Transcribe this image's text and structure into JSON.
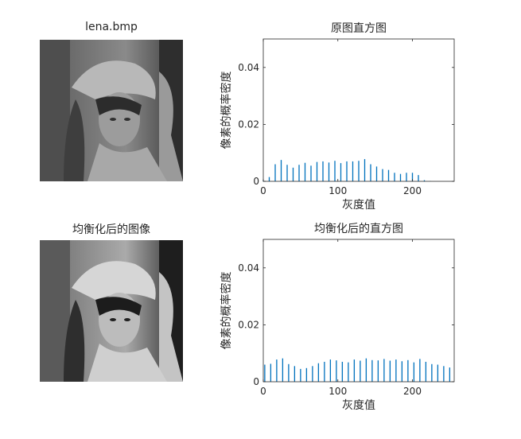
{
  "figure": {
    "colors": {
      "bar": "#0072bd",
      "axis": "#262626",
      "background": "#ffffff"
    }
  },
  "images": [
    {
      "title": "lena.bmp",
      "icon": "grayscale-portrait-image"
    },
    {
      "title": "均衡化后的图像",
      "icon": "equalized-grayscale-portrait-image"
    }
  ],
  "chart_data": [
    {
      "type": "bar",
      "title": "原图直方图",
      "xlabel": "灰度值",
      "ylabel": "像素的概率密度",
      "xlim": [
        0,
        256
      ],
      "ylim": [
        0,
        0.05
      ],
      "xticks": [
        "0",
        "100",
        "200"
      ],
      "yticks": [
        "0",
        "0.02",
        "0.04"
      ],
      "x": [
        0,
        8,
        16,
        24,
        32,
        40,
        48,
        56,
        64,
        72,
        80,
        88,
        96,
        104,
        112,
        120,
        128,
        136,
        144,
        152,
        160,
        168,
        176,
        184,
        192,
        200,
        208,
        216,
        224,
        232,
        240,
        248
      ],
      "values": [
        0.0003,
        0.0015,
        0.006,
        0.0075,
        0.0058,
        0.0048,
        0.0058,
        0.0065,
        0.0055,
        0.0068,
        0.007,
        0.0066,
        0.0072,
        0.0064,
        0.007,
        0.007,
        0.0072,
        0.0078,
        0.006,
        0.0052,
        0.0043,
        0.004,
        0.003,
        0.0026,
        0.003,
        0.003,
        0.0022,
        0.0004,
        0.0001,
        0,
        0,
        0
      ]
    },
    {
      "type": "bar",
      "title": "均衡化后的直方图",
      "xlabel": "灰度值",
      "ylabel": "像素的概率密度",
      "xlim": [
        0,
        256
      ],
      "ylim": [
        0,
        0.05
      ],
      "xticks": [
        "0",
        "100",
        "200"
      ],
      "yticks": [
        "0",
        "0.02",
        "0.04"
      ],
      "x": [
        2,
        10,
        18,
        26,
        34,
        42,
        50,
        58,
        66,
        74,
        82,
        90,
        98,
        106,
        114,
        122,
        130,
        138,
        146,
        154,
        162,
        170,
        178,
        186,
        194,
        202,
        210,
        218,
        226,
        234,
        242,
        250
      ],
      "values": [
        0.006,
        0.0063,
        0.0078,
        0.0082,
        0.0062,
        0.0055,
        0.0045,
        0.0048,
        0.0055,
        0.0065,
        0.007,
        0.0078,
        0.0075,
        0.007,
        0.0068,
        0.0078,
        0.0074,
        0.0082,
        0.0076,
        0.0075,
        0.008,
        0.0074,
        0.0078,
        0.0072,
        0.0076,
        0.0068,
        0.008,
        0.007,
        0.0062,
        0.006,
        0.0055,
        0.005
      ]
    }
  ]
}
